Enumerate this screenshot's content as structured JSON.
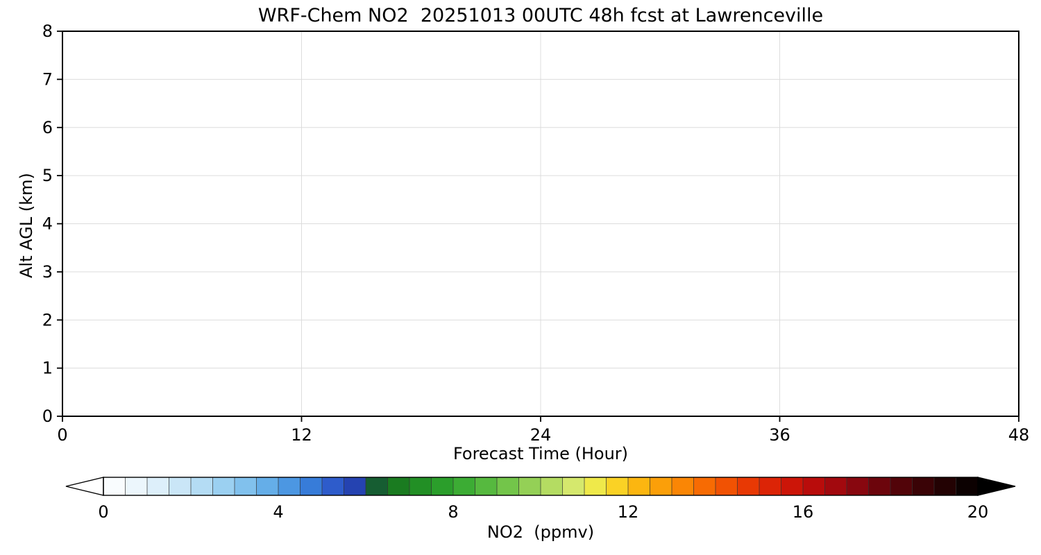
{
  "chart_data": {
    "type": "heatmap",
    "title": "WRF-Chem NO2  20251013 00UTC 48h fcst at Lawrenceville",
    "xlabel": "Forecast Time (Hour)",
    "ylabel": "Alt AGL (km)",
    "xlim": [
      0,
      48
    ],
    "ylim": [
      0,
      8
    ],
    "xticks": [
      0,
      12,
      24,
      36,
      48
    ],
    "yticks": [
      0,
      1,
      2,
      3,
      4,
      5,
      6,
      7,
      8
    ],
    "grid": true,
    "field_values": "uniform ~0 ppmv (plot area renders blank white, no contours visible)",
    "colorbar": {
      "label": "NO2  (ppmv)",
      "min": 0,
      "max": 20,
      "ticks": [
        0,
        4,
        8,
        12,
        16,
        20
      ],
      "extend": "both",
      "segments": 40,
      "stops": [
        {
          "v": 0.0,
          "c": "#ffffff"
        },
        {
          "v": 1.0,
          "c": "#e6f3fb"
        },
        {
          "v": 2.0,
          "c": "#c0e2f6"
        },
        {
          "v": 3.0,
          "c": "#8fcaef"
        },
        {
          "v": 4.0,
          "c": "#57a4e6"
        },
        {
          "v": 4.8,
          "c": "#3579d8"
        },
        {
          "v": 5.5,
          "c": "#2a4cc4"
        },
        {
          "v": 6.0,
          "c": "#203a9e"
        },
        {
          "v": 6.3,
          "c": "#14641c"
        },
        {
          "v": 7.0,
          "c": "#1e8822"
        },
        {
          "v": 8.0,
          "c": "#2fa52e"
        },
        {
          "v": 9.0,
          "c": "#63bf44"
        },
        {
          "v": 10.0,
          "c": "#a4d65c"
        },
        {
          "v": 10.8,
          "c": "#d8e96e"
        },
        {
          "v": 11.4,
          "c": "#f7e93e"
        },
        {
          "v": 12.0,
          "c": "#fcc113"
        },
        {
          "v": 13.0,
          "c": "#fb9306"
        },
        {
          "v": 14.0,
          "c": "#f55e02"
        },
        {
          "v": 15.0,
          "c": "#e42c05"
        },
        {
          "v": 16.0,
          "c": "#c40d09"
        },
        {
          "v": 17.0,
          "c": "#960810"
        },
        {
          "v": 18.0,
          "c": "#5e040a"
        },
        {
          "v": 19.0,
          "c": "#2e0204"
        },
        {
          "v": 20.0,
          "c": "#000000"
        }
      ]
    }
  },
  "styles": {
    "grid_color": "#dcdcdc",
    "axis_color": "#000000",
    "text_color": "#000000",
    "background": "#ffffff"
  }
}
